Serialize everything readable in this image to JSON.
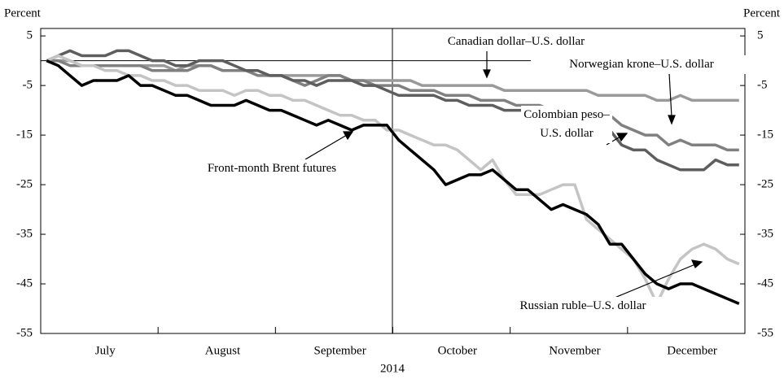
{
  "chart_data": {
    "type": "line",
    "xlabel": "2014",
    "ylabel": "Percent",
    "y2label": "Percent",
    "categories": [
      null,
      null,
      null,
      null,
      null,
      "July",
      null,
      null,
      null,
      null,
      null,
      null,
      null,
      null,
      null,
      "August",
      null,
      null,
      null,
      null,
      null,
      null,
      null,
      null,
      null,
      "September",
      null,
      null,
      null,
      null,
      null,
      null,
      null,
      null,
      null,
      "October",
      null,
      null,
      null,
      null,
      null,
      null,
      null,
      null,
      null,
      "November",
      null,
      null,
      null,
      null,
      null,
      null,
      null,
      null,
      null,
      "December",
      null,
      null,
      null,
      null
    ],
    "series": [
      {
        "name": "Canadian dollar–U.S. dollar",
        "color": "#9a9a9a",
        "values": [
          0,
          0,
          0,
          -1,
          -1,
          -1,
          -1,
          -1,
          -1,
          -1,
          -1,
          -2,
          -1,
          -1,
          -1,
          -2,
          -2,
          -2,
          -2,
          -3,
          -3,
          -3,
          -3,
          -3,
          -3,
          -3,
          -4,
          -4,
          -4,
          -4,
          -4,
          -4,
          -5,
          -5,
          -5,
          -5,
          -5,
          -5,
          -5,
          -6,
          -6,
          -6,
          -6,
          -6,
          -6,
          -6,
          -6,
          -7,
          -7,
          -7,
          -7,
          -7,
          -8,
          -8,
          -7,
          -8,
          -8,
          -8,
          -8,
          -8
        ]
      },
      {
        "name": "Norwegian krone–U.S. dollar",
        "color": "#808080",
        "values": [
          0,
          0,
          -1,
          -1,
          -1,
          -1,
          -1,
          -1,
          -1,
          -2,
          -2,
          -2,
          -2,
          -1,
          -1,
          -2,
          -2,
          -2,
          -3,
          -3,
          -3,
          -4,
          -5,
          -4,
          -3,
          -3,
          -4,
          -4,
          -5,
          -5,
          -5,
          -6,
          -6,
          -6,
          -7,
          -7,
          -7,
          -8,
          -8,
          -8,
          -9,
          -9,
          -9,
          -10,
          -10,
          -10,
          -11,
          -11,
          -11,
          -13,
          -14,
          -15,
          -15,
          -17,
          -16,
          -17,
          -17,
          -17,
          -18,
          -18
        ]
      },
      {
        "name": "Colombian peso–U.S. dollar",
        "color": "#5e5e5e",
        "values": [
          0,
          1,
          2,
          1,
          1,
          1,
          2,
          2,
          1,
          0,
          0,
          -1,
          -1,
          0,
          0,
          0,
          -1,
          -2,
          -2,
          -3,
          -3,
          -4,
          -4,
          -5,
          -4,
          -4,
          -4,
          -5,
          -5,
          -6,
          -7,
          -7,
          -7,
          -7,
          -8,
          -8,
          -9,
          -9,
          -9,
          -10,
          -10,
          -10,
          -11,
          -11,
          -12,
          -13,
          -13,
          -13,
          -14,
          -17,
          -18,
          -18,
          -20,
          -21,
          -22,
          -22,
          -22,
          -20,
          -21,
          -21
        ]
      },
      {
        "name": "Russian ruble–U.S. dollar",
        "color": "#c4c4c4",
        "values": [
          0,
          1,
          0,
          -1,
          -1,
          -2,
          -2,
          -3,
          -3,
          -4,
          -4,
          -5,
          -5,
          -6,
          -6,
          -6,
          -7,
          -6,
          -6,
          -7,
          -7,
          -8,
          -8,
          -9,
          -10,
          -11,
          -11,
          -12,
          -12,
          -14,
          -14,
          -15,
          -16,
          -17,
          -17,
          -18,
          -20,
          -22,
          -20,
          -24,
          -27,
          -27,
          -27,
          -26,
          -25,
          -25,
          -32,
          -34,
          -36,
          -38,
          -40,
          -44,
          -49,
          -44,
          -40,
          -38,
          -37,
          -38,
          -40,
          -41
        ]
      },
      {
        "name": "Front-month Brent futures",
        "color": "#000000",
        "values": [
          0,
          -1,
          -3,
          -5,
          -4,
          -4,
          -4,
          -3,
          -5,
          -5,
          -6,
          -7,
          -7,
          -8,
          -9,
          -9,
          -9,
          -8,
          -9,
          -10,
          -10,
          -11,
          -12,
          -13,
          -12,
          -13,
          -14,
          -13,
          -13,
          -13,
          -16,
          -18,
          -20,
          -22,
          -25,
          -24,
          -23,
          -23,
          -22,
          -24,
          -26,
          -26,
          -28,
          -30,
          -29,
          -30,
          -31,
          -33,
          -37,
          -37,
          -40,
          -43,
          -45,
          -46,
          -45,
          -45,
          -46,
          -47,
          -48,
          -49
        ]
      }
    ],
    "ylim": [
      -55,
      6.5
    ],
    "yticks": [
      5,
      -5,
      -15,
      -25,
      -35,
      -45,
      -55
    ],
    "y2lim": [
      -55,
      6.5
    ],
    "y2ticks": [
      5,
      -5,
      -15,
      -25,
      -35,
      -45,
      -55
    ]
  }
}
